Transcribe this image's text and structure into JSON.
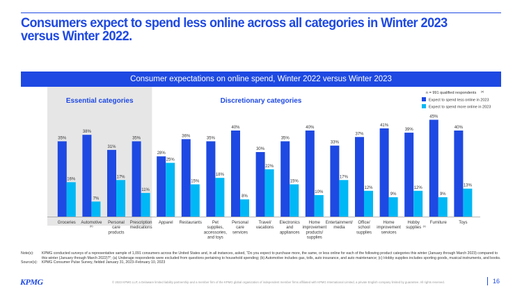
{
  "slide": {
    "title": "Consumers expect to spend less online across all categories in Winter 2023 versus Winter 2022.",
    "banner": "Consumer expectations on online spend, Winter 2022 versus Winter 2023",
    "notes_label": "Note(s):",
    "notes_text": "KPMG conducted surveys of a representative sample of 1,091 consumers across the United States and, in all instances, asked, “Do you expect to purchase more, the same, or less online for each of the following product categories this winter (January through March 2023) compared to this winter (January through March 2022)?”; (a) Underage respondents were excluded from questions pertaining to household spending; (b) Automotive includes gas, tolls, auto insurance, and auto maintenance; (c) Hobby supplies includes sporting goods, musical instruments, and books.",
    "source_label": "Source(s):",
    "source_text": "KPMG Consumer Pulse Survey, fielded January 31, 2023–February 10, 2023",
    "logo": "KPMG",
    "footer": "© 2023 KPMG LLP, a Delaware limited liability partnership and a member firm of the KPMG global organization of independent member firms affiliated with KPMG International Limited, a private English company limited by guarantee. All rights reserved.",
    "page_number": "16"
  },
  "chart_data": {
    "type": "bar",
    "title": "Consumer expectations on online spend, Winter 2022 versus Winter 2023",
    "group_labels": [
      "Essential categories",
      "Discretionary categories"
    ],
    "essential_count": 4,
    "legend_note": "n = 991 qualified respondents",
    "legend_note_sup": "(a)",
    "legend_placement": "top-right",
    "categories": [
      {
        "label": [
          "Groceries"
        ],
        "sup": ""
      },
      {
        "label": [
          "Automotive"
        ],
        "sup": "(b)"
      },
      {
        "label": [
          "Personal",
          "care",
          "products"
        ],
        "sup": ""
      },
      {
        "label": [
          "Prescription",
          "medications"
        ],
        "sup": ""
      },
      {
        "label": [
          "Apparel"
        ],
        "sup": ""
      },
      {
        "label": [
          "Restaurants"
        ],
        "sup": ""
      },
      {
        "label": [
          "Pet",
          "supplies,",
          "accessories,",
          "and toys"
        ],
        "sup": ""
      },
      {
        "label": [
          "Personal",
          "care",
          "services"
        ],
        "sup": ""
      },
      {
        "label": [
          "Travel/",
          "vacations"
        ],
        "sup": ""
      },
      {
        "label": [
          "Electronics",
          "and",
          "appliances"
        ],
        "sup": ""
      },
      {
        "label": [
          "Home",
          "improvement",
          "products/",
          "supplies"
        ],
        "sup": ""
      },
      {
        "label": [
          "Entertainment/",
          "media"
        ],
        "sup": ""
      },
      {
        "label": [
          "Office/",
          "school",
          "supplies"
        ],
        "sup": ""
      },
      {
        "label": [
          "Home",
          "improvement",
          "services"
        ],
        "sup": ""
      },
      {
        "label": [
          "Hobby",
          "supplies"
        ],
        "sup": "(c)"
      },
      {
        "label": [
          "Furniture"
        ],
        "sup": ""
      },
      {
        "label": [
          "Toys"
        ],
        "sup": ""
      }
    ],
    "series": [
      {
        "name": "Expect to spend less online in 2023",
        "color": "#1e49e2",
        "values": [
          35,
          38,
          31,
          35,
          28,
          36,
          35,
          40,
          30,
          35,
          40,
          33,
          37,
          41,
          39,
          45,
          40
        ],
        "labels": [
          "35%",
          "38%",
          "31%",
          "35%",
          "28%",
          "36%",
          "35%",
          "40%",
          "30%",
          "35%",
          "40%",
          "33%",
          "37%",
          "41%",
          "39%",
          "45%",
          "40%"
        ]
      },
      {
        "name": "Expect to spend more online in 2023",
        "color": "#00b8f5",
        "values": [
          16,
          7,
          17,
          11,
          25,
          15,
          18,
          8,
          22,
          15,
          10,
          17,
          12,
          9,
          12,
          9,
          13
        ],
        "labels": [
          "16%",
          "7%",
          "17%",
          "11%",
          "25%",
          "15%",
          "18%",
          "8%",
          "22%",
          "15%",
          "10%",
          "17%",
          "12%",
          "9%",
          "12%",
          "9%",
          "13%"
        ]
      }
    ],
    "colors": {
      "essential_bg": "#e6e6e6",
      "axis": "#9a9a9a"
    }
  }
}
